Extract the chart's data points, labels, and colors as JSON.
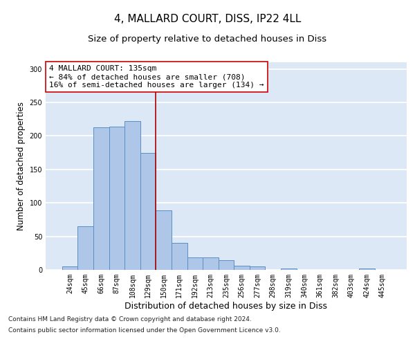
{
  "title": "4, MALLARD COURT, DISS, IP22 4LL",
  "subtitle": "Size of property relative to detached houses in Diss",
  "xlabel": "Distribution of detached houses by size in Diss",
  "ylabel": "Number of detached properties",
  "footnote1": "Contains HM Land Registry data © Crown copyright and database right 2024.",
  "footnote2": "Contains public sector information licensed under the Open Government Licence v3.0.",
  "annotation_line1": "4 MALLARD COURT: 135sqm",
  "annotation_line2": "← 84% of detached houses are smaller (708)",
  "annotation_line3": "16% of semi-detached houses are larger (134) →",
  "bar_labels": [
    "24sqm",
    "45sqm",
    "66sqm",
    "87sqm",
    "108sqm",
    "129sqm",
    "150sqm",
    "171sqm",
    "192sqm",
    "213sqm",
    "235sqm",
    "256sqm",
    "277sqm",
    "298sqm",
    "319sqm",
    "340sqm",
    "361sqm",
    "382sqm",
    "403sqm",
    "424sqm",
    "445sqm"
  ],
  "bar_values": [
    5,
    65,
    213,
    214,
    222,
    175,
    89,
    40,
    19,
    19,
    14,
    6,
    5,
    0,
    2,
    0,
    0,
    0,
    0,
    2,
    0
  ],
  "bar_color": "#aec6e8",
  "bar_edge_color": "#5a8fc2",
  "bg_color": "#dce8f5",
  "grid_color": "#ffffff",
  "vline_x": 5.5,
  "vline_color": "#aa0000",
  "ylim": [
    0,
    310
  ],
  "yticks": [
    0,
    50,
    100,
    150,
    200,
    250,
    300
  ],
  "title_fontsize": 11,
  "subtitle_fontsize": 9.5,
  "xlabel_fontsize": 9,
  "ylabel_fontsize": 8.5,
  "tick_fontsize": 7,
  "annotation_fontsize": 8,
  "footnote_fontsize": 6.5
}
